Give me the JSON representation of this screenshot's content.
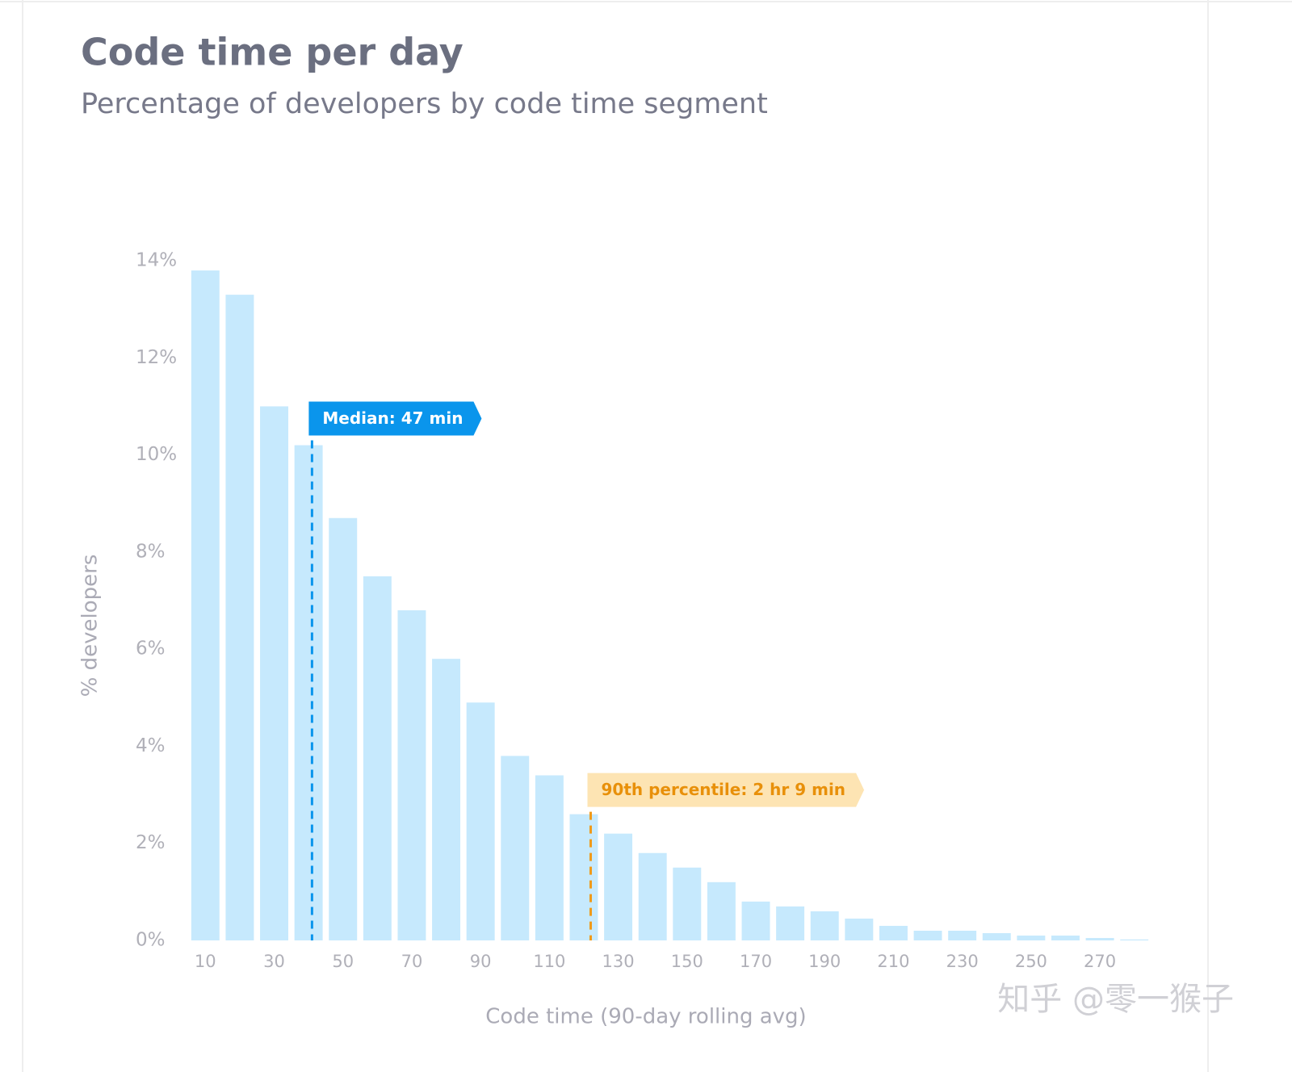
{
  "chart_data": {
    "type": "bar",
    "title": "Code time per day",
    "subtitle": "Percentage of developers by code time segment",
    "x_label": "Code time (90-day rolling avg)",
    "y_label": "% developers",
    "x": [
      10,
      20,
      30,
      40,
      50,
      60,
      70,
      80,
      90,
      100,
      110,
      120,
      130,
      140,
      150,
      160,
      170,
      180,
      190,
      200,
      210,
      220,
      230,
      240,
      250,
      260,
      270,
      280
    ],
    "values": [
      13.8,
      13.3,
      11.0,
      10.2,
      8.7,
      7.5,
      6.8,
      5.8,
      4.9,
      3.8,
      3.4,
      2.6,
      2.2,
      1.8,
      1.5,
      1.2,
      0.8,
      0.7,
      0.6,
      0.45,
      0.3,
      0.2,
      0.2,
      0.15,
      0.1,
      0.1,
      0.05,
      0.02
    ],
    "color": "#c6e9fd",
    "xlim": [
      5,
      285
    ],
    "xticks": [
      10,
      30,
      50,
      70,
      90,
      110,
      130,
      150,
      170,
      190,
      210,
      230,
      250,
      270
    ],
    "ylim": [
      0,
      14
    ],
    "yticks": [
      {
        "value": 0,
        "label": "0%"
      },
      {
        "value": 2,
        "label": "2%"
      },
      {
        "value": 4,
        "label": "4%"
      },
      {
        "value": 6,
        "label": "6%"
      },
      {
        "value": 8,
        "label": "8%"
      },
      {
        "value": 10,
        "label": "10%"
      },
      {
        "value": 12,
        "label": "12%"
      },
      {
        "value": 14,
        "label": "14%"
      }
    ],
    "grid": false,
    "annotations": [
      {
        "label": "Median: 47 min",
        "x": 41,
        "y": 10.3,
        "color": "#0a95ec",
        "fill": "#0a95ec",
        "text_color": "#ffffff"
      },
      {
        "label": "90th percentile: 2 hr 9 min",
        "x": 122,
        "y": 2.65,
        "color": "#f09a1a",
        "fill": "#fde4b3",
        "text_color": "#e8900a"
      }
    ],
    "watermark": "知乎 @零一猴子"
  }
}
